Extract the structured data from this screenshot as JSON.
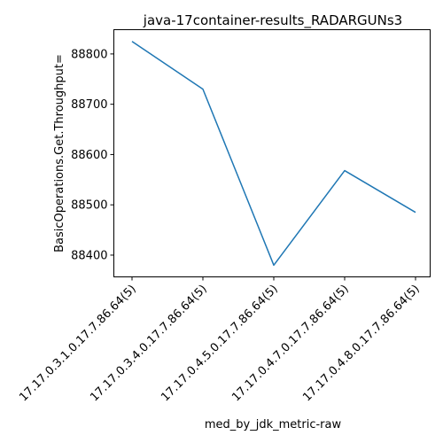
{
  "chart_data": {
    "type": "line",
    "title": "java-17container-results_RADARGUNs3",
    "xlabel": "med_by_jdk_metric-raw",
    "ylabel": "BasicOperations.Get.Throughput=",
    "categories": [
      "17.17.0.3.1.0.17.7.86.64(5)",
      "17.17.0.3.4.0.17.7.86.64(5)",
      "17.17.0.4.5.0.17.7.86.64(5)",
      "17.17.0.4.7.0.17.7.86.64(5)",
      "17.17.0.4.8.0.17.7.86.64(5)"
    ],
    "series": [
      {
        "values": [
          88825,
          88730,
          88380,
          88568,
          88485
        ]
      }
    ],
    "ylim": [
      88356.75,
      88848.25
    ],
    "yticks": [
      88400,
      88500,
      88600,
      88700,
      88800
    ],
    "grid": false,
    "line_color": "#1f77b4"
  }
}
